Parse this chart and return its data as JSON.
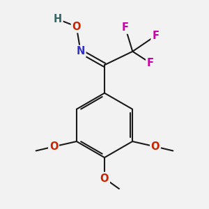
{
  "background_color": "#f2f2f2",
  "bond_color": "#1a1a1a",
  "N_color": "#3333cc",
  "O_color": "#cc2200",
  "F_color": "#cc00aa",
  "H_color": "#336666",
  "methoxy_color": "#1a1a1a",
  "figsize": [
    3.0,
    3.0
  ],
  "dpi": 100,
  "xlim": [
    0,
    10
  ],
  "ylim": [
    0,
    10
  ]
}
